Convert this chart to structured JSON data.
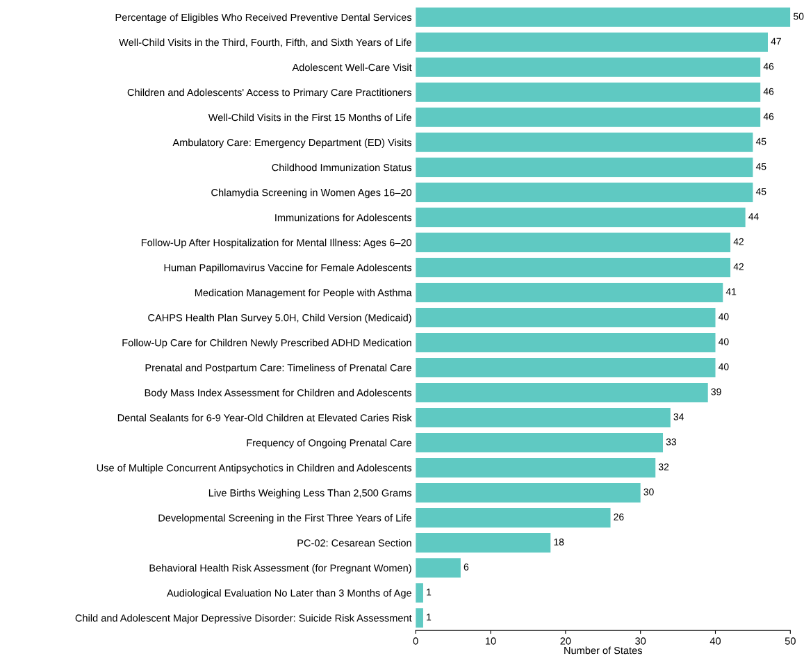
{
  "chart_data": {
    "type": "bar",
    "orientation": "horizontal",
    "xlabel": "Number of States",
    "categories": [
      "Percentage of Eligibles Who Received Preventive Dental Services",
      "Well-Child Visits in the Third, Fourth, Fifth, and Sixth Years of Life",
      "Adolescent Well-Care Visit",
      "Children and Adolescents' Access to Primary Care Practitioners",
      "Well-Child Visits in the First 15 Months of Life",
      "Ambulatory Care: Emergency Department (ED) Visits",
      "Childhood Immunization Status",
      "Chlamydia Screening in Women Ages 16–20",
      "Immunizations for Adolescents",
      "Follow-Up After Hospitalization for Mental Illness: Ages 6–20",
      "Human Papillomavirus Vaccine for Female Adolescents",
      "Medication Management for People with Asthma",
      "CAHPS Health Plan Survey 5.0H, Child Version (Medicaid)",
      "Follow-Up Care for Children Newly Prescribed ADHD Medication",
      "Prenatal and Postpartum Care: Timeliness of Prenatal Care",
      "Body Mass Index Assessment for Children and Adolescents",
      "Dental Sealants for 6-9 Year-Old Children at Elevated Caries Risk",
      "Frequency of Ongoing Prenatal Care",
      "Use of Multiple Concurrent Antipsychotics in Children and Adolescents",
      "Live Births Weighing Less Than 2,500 Grams",
      "Developmental Screening in the First Three Years of Life",
      "PC-02: Cesarean Section",
      "Behavioral Health Risk Assessment (for Pregnant Women)",
      "Audiological Evaluation No Later than 3 Months of Age",
      "Child and Adolescent Major Depressive Disorder: Suicide Risk Assessment"
    ],
    "values": [
      50,
      47,
      46,
      46,
      46,
      45,
      45,
      45,
      44,
      42,
      42,
      41,
      40,
      40,
      40,
      39,
      34,
      33,
      32,
      30,
      26,
      18,
      6,
      1,
      1
    ],
    "color": "#5fc9c2",
    "xlim": [
      0,
      50
    ],
    "xticks": [
      0,
      10,
      20,
      30,
      40,
      50
    ],
    "data_labels": true,
    "grid": false,
    "legend": false
  }
}
